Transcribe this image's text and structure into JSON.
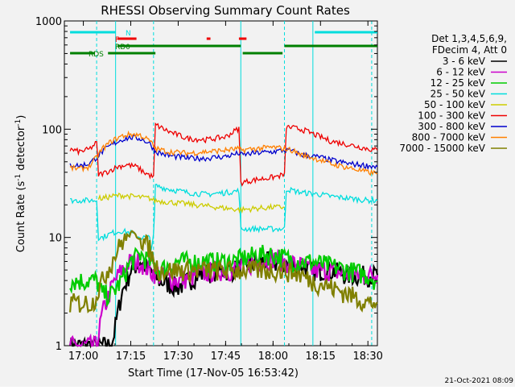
{
  "chart_data": {
    "type": "line",
    "title": "RHESSI Observing Summary Count Rates",
    "xlabel": "Start Time (17-Nov-05 16:53:42)",
    "ylabel": "Count Rate (s⁻¹ detector⁻¹)",
    "ylabel_main": "Count Rate (s",
    "ylabel_sup1": "-1",
    "ylabel_mid": " detector",
    "ylabel_sup2": "-1",
    "ylabel_end": ")",
    "yscale": "log",
    "ylim": [
      1,
      1000
    ],
    "xlim_minutes": [
      16.9,
      18.55
    ],
    "x_ticks": [
      {
        "value": 17.0,
        "label": "17:00"
      },
      {
        "value": 17.25,
        "label": "17:15"
      },
      {
        "value": 17.5,
        "label": "17:30"
      },
      {
        "value": 17.75,
        "label": "17:45"
      },
      {
        "value": 18.0,
        "label": "18:00"
      },
      {
        "value": 18.25,
        "label": "18:15"
      },
      {
        "value": 18.5,
        "label": "18:30"
      }
    ],
    "y_ticks": [
      {
        "value": 1,
        "label": "1"
      },
      {
        "value": 10,
        "label": "10"
      },
      {
        "value": 100,
        "label": "100"
      },
      {
        "value": 1000,
        "label": "1000"
      }
    ],
    "legend": {
      "header1": "Det 1,3,4,5,6,9,",
      "header2": "FDecim 4, Att 0",
      "placement": "right"
    },
    "series": [
      {
        "name": "3 - 6 keV",
        "color": "#000000",
        "x": [
          16.93,
          17.07,
          17.1,
          17.15,
          17.2,
          17.25,
          17.3,
          17.35,
          17.4,
          17.5,
          17.6,
          17.7,
          17.78,
          17.85,
          17.92,
          18.0,
          18.06,
          18.15,
          18.2,
          18.3,
          18.4,
          18.5,
          18.55
        ],
        "y": [
          1,
          1,
          1,
          1,
          3,
          5,
          6,
          5,
          4,
          3.5,
          4.5,
          5,
          5,
          5.5,
          6,
          6,
          5.5,
          5.5,
          5,
          5,
          4.5,
          4.5,
          4.5
        ]
      },
      {
        "name": "6 - 12 keV",
        "color": "#cc00cc",
        "x": [
          16.93,
          17.05,
          17.07,
          17.1,
          17.15,
          17.2,
          17.25,
          17.3,
          17.35,
          17.4,
          17.5,
          17.6,
          17.7,
          17.78,
          17.85,
          17.92,
          18.0,
          18.06,
          18.15,
          18.2,
          18.3,
          18.4,
          18.5,
          18.55
        ],
        "y": [
          1,
          1,
          1,
          2,
          3.5,
          5,
          6,
          6,
          5,
          4.5,
          4,
          4.5,
          5,
          5,
          5.5,
          6,
          6.5,
          6,
          5.5,
          5,
          5,
          4.5,
          4.5,
          4.5
        ]
      },
      {
        "name": "12 - 25 keV",
        "color": "#00cc00",
        "x": [
          16.93,
          17.0,
          17.07,
          17.1,
          17.15,
          17.2,
          17.25,
          17.3,
          17.35,
          17.4,
          17.5,
          17.6,
          17.7,
          17.78,
          17.85,
          17.92,
          18.0,
          18.06,
          18.15,
          18.2,
          18.3,
          18.4,
          18.5,
          18.55
        ],
        "y": [
          4,
          4,
          4,
          3,
          3,
          4,
          6,
          7,
          6,
          5,
          6,
          6,
          6,
          6,
          6.5,
          7,
          7,
          6.5,
          6,
          6,
          5.5,
          5,
          4.5,
          4
        ]
      },
      {
        "name": "25 - 50 keV",
        "color": "#00dddd",
        "x": [
          16.93,
          17.0,
          17.07,
          17.08,
          17.1,
          17.15,
          17.2,
          17.25,
          17.3,
          17.35,
          17.37,
          17.38,
          17.45,
          17.55,
          17.65,
          17.75,
          17.82,
          17.83,
          17.9,
          18.0,
          18.06,
          18.07,
          18.15,
          18.25,
          18.3,
          18.4,
          18.5,
          18.55
        ],
        "y": [
          22,
          22,
          22,
          10,
          10,
          11,
          11.5,
          11,
          10,
          10,
          9,
          30,
          28,
          26,
          25,
          26,
          27,
          12,
          12,
          12,
          12,
          28,
          26,
          25,
          24,
          23,
          22,
          22
        ]
      },
      {
        "name": "50 - 100 keV",
        "color": "#cccc00",
        "x": [
          17.08,
          17.1,
          17.15,
          17.2,
          17.25,
          17.3,
          17.35,
          17.37,
          17.83,
          17.9,
          18.0,
          18.06
        ],
        "y": [
          23,
          23,
          24,
          24.5,
          24,
          23.5,
          23,
          22,
          18,
          18.5,
          19,
          19
        ]
      },
      {
        "name": "100 - 300 keV",
        "color": "#ee0000",
        "x": [
          16.93,
          16.98,
          17.03,
          17.07,
          17.08,
          17.12,
          17.18,
          17.23,
          17.28,
          17.32,
          17.37,
          17.38,
          17.45,
          17.55,
          17.65,
          17.75,
          17.82,
          17.83,
          17.9,
          18.0,
          18.06,
          18.07,
          18.15,
          18.25,
          18.3,
          18.4,
          18.5,
          18.55
        ],
        "y": [
          65,
          62,
          65,
          75,
          38,
          40,
          45,
          47,
          45,
          40,
          36,
          110,
          95,
          82,
          80,
          85,
          102,
          32,
          34,
          36,
          38,
          105,
          100,
          85,
          78,
          72,
          66,
          64
        ]
      },
      {
        "name": "300 - 800 keV",
        "color": "#0000cc",
        "x": [
          16.93,
          16.98,
          17.03,
          17.07,
          17.1,
          17.15,
          17.2,
          17.25,
          17.3,
          17.35,
          17.37,
          17.38,
          17.45,
          17.55,
          17.65,
          17.75,
          17.82,
          17.83,
          17.9,
          18.0,
          18.06,
          18.1,
          18.15,
          18.25,
          18.3,
          18.4,
          18.5,
          18.55
        ],
        "y": [
          47,
          46,
          48,
          55,
          62,
          72,
          80,
          84,
          82,
          74,
          66,
          62,
          57,
          54,
          54,
          56,
          60,
          58,
          60,
          62,
          64,
          63,
          58,
          55,
          52,
          48,
          46,
          45
        ]
      },
      {
        "name": "800 - 7000 keV",
        "color": "#ff8000",
        "x": [
          16.93,
          16.98,
          17.03,
          17.07,
          17.1,
          17.15,
          17.2,
          17.25,
          17.3,
          17.35,
          17.37,
          17.38,
          17.45,
          17.55,
          17.65,
          17.75,
          17.82,
          17.83,
          17.9,
          18.0,
          18.06,
          18.1,
          18.15,
          18.25,
          18.3,
          18.4,
          18.5,
          18.55
        ],
        "y": [
          44,
          43,
          45,
          55,
          66,
          78,
          86,
          90,
          88,
          78,
          70,
          66,
          62,
          60,
          62,
          64,
          66,
          64,
          66,
          68,
          66,
          64,
          58,
          52,
          48,
          44,
          40,
          39
        ]
      },
      {
        "name": "7000 - 15000 keV",
        "color": "#808000",
        "x": [
          16.93,
          17.0,
          17.05,
          17.1,
          17.15,
          17.2,
          17.25,
          17.3,
          17.35,
          17.37,
          17.4,
          17.5,
          17.6,
          17.7,
          17.78,
          17.85,
          17.92,
          18.0,
          18.06,
          18.15,
          18.2,
          18.3,
          18.4,
          18.5,
          18.55
        ],
        "y": [
          2.5,
          2.5,
          2.5,
          4,
          6,
          9,
          11,
          10,
          8,
          6,
          5,
          5,
          5,
          5,
          5,
          5,
          5,
          5,
          5,
          4.5,
          4,
          3.5,
          3,
          2.5,
          2.5
        ]
      }
    ],
    "flag_bars": [
      {
        "label": "N",
        "color": "#00dddd",
        "segments": [
          [
            16.93,
            17.17
          ],
          [
            18.22,
            18.55
          ]
        ]
      },
      {
        "label": "F",
        "color": "#ee0000",
        "segments": [
          [
            17.18,
            17.28
          ],
          [
            17.65,
            17.67
          ],
          [
            17.82,
            17.86
          ]
        ]
      },
      {
        "label": "RD0",
        "color": "#008000",
        "segments": [
          [
            17.18,
            17.83
          ],
          [
            18.06,
            18.55
          ]
        ]
      },
      {
        "label": "RDS",
        "color": "#008000",
        "segments": [
          [
            16.93,
            17.06
          ],
          [
            17.13,
            17.38
          ],
          [
            17.84,
            18.05
          ]
        ]
      }
    ],
    "interval_lines": [
      17.07,
      17.17,
      17.37,
      17.83,
      18.06,
      18.21,
      18.52
    ],
    "footer_date": "21-Oct-2021 08:09"
  }
}
